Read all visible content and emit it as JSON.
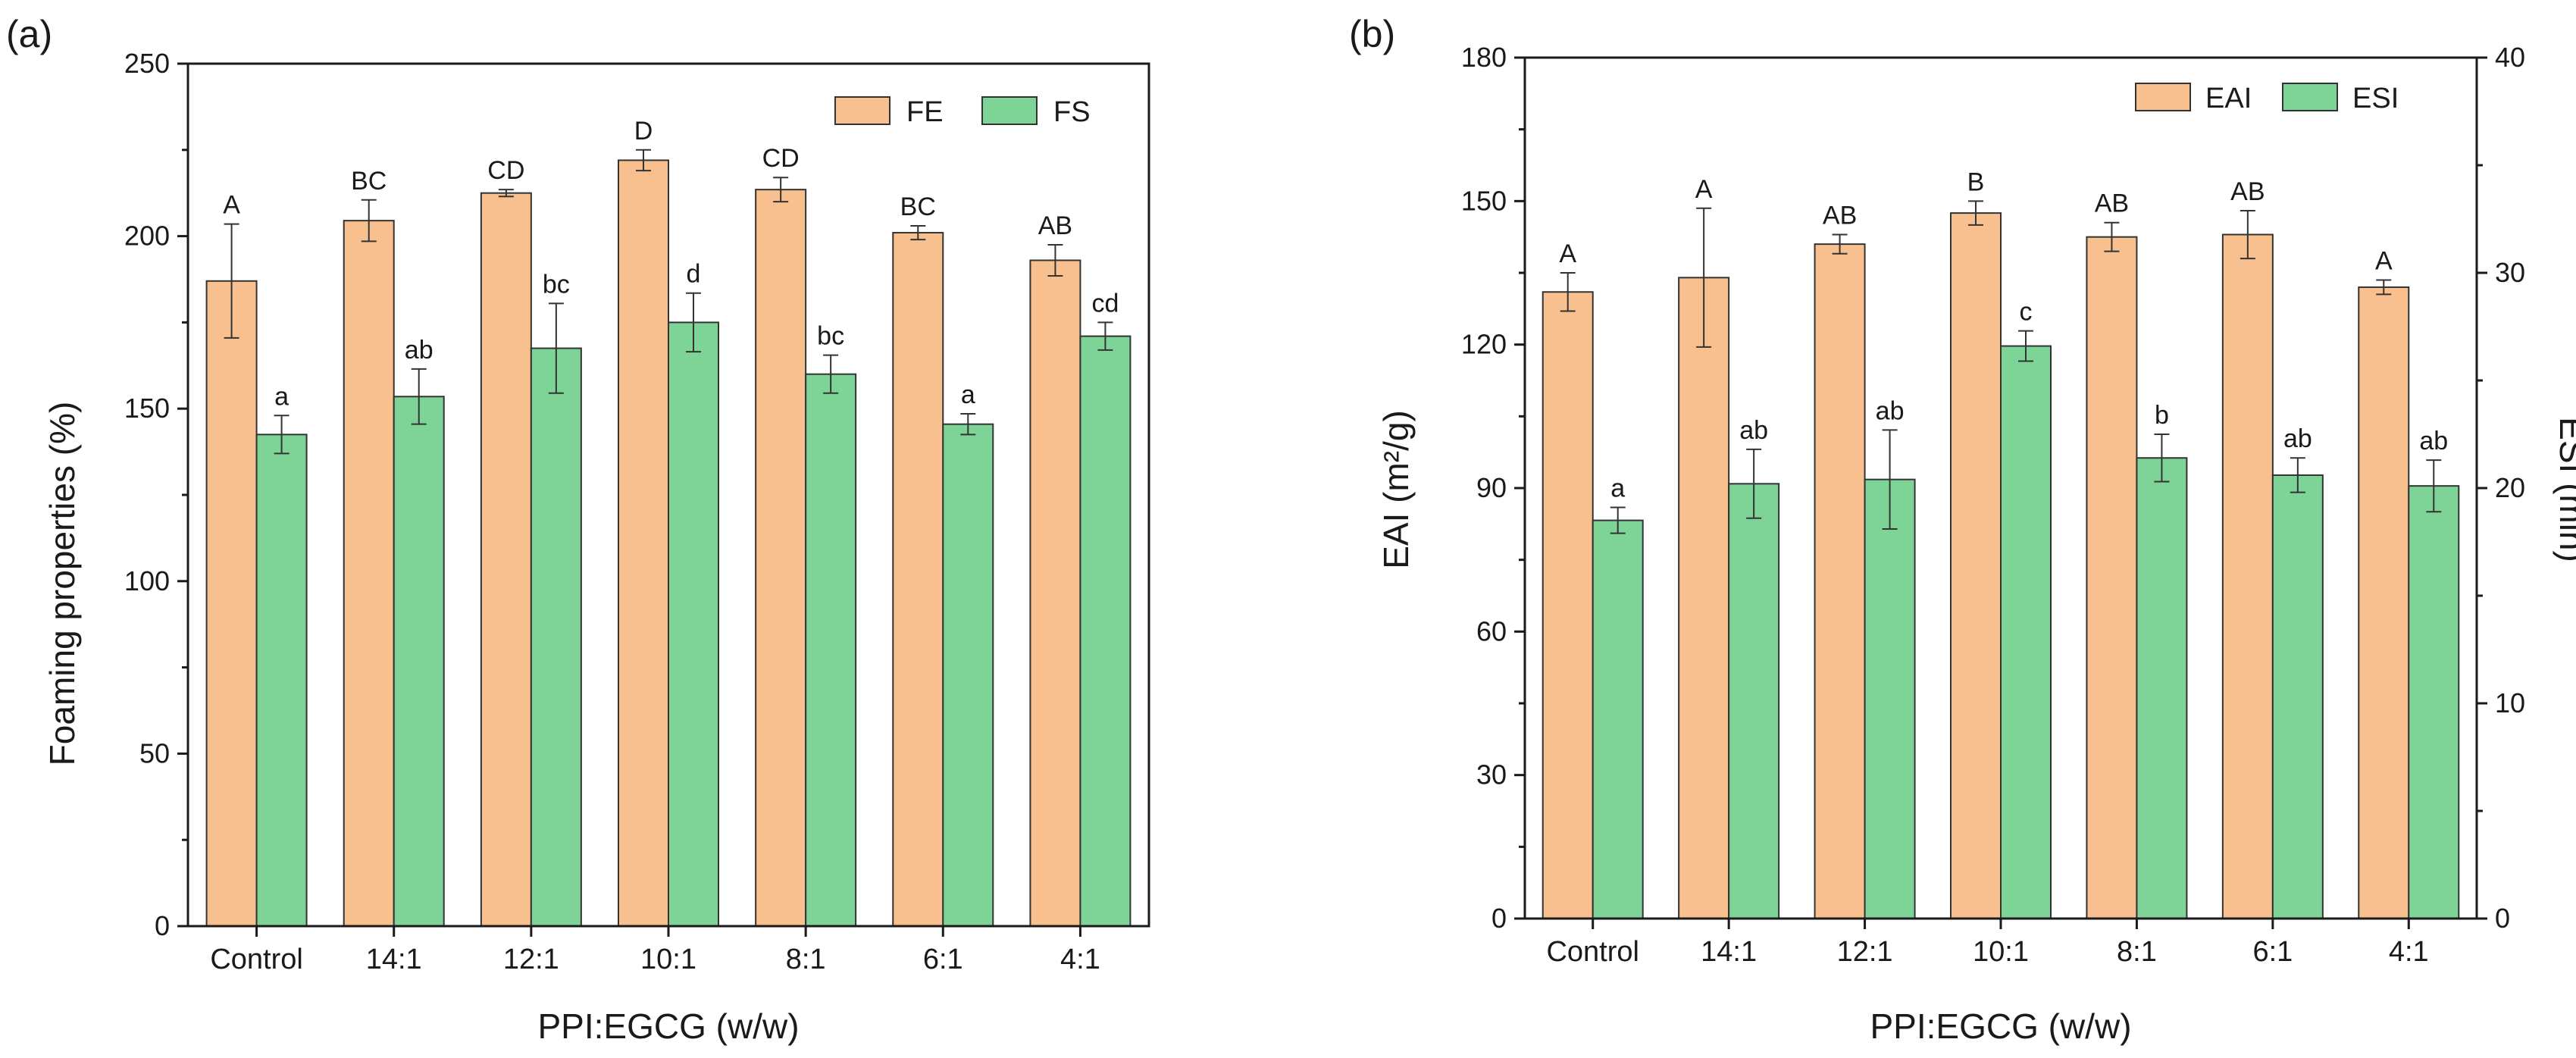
{
  "chart_data": [
    {
      "panel_label": "(a)",
      "type": "bar",
      "xlabel": "PPI:EGCG (w/w)",
      "ylabel": "Foaming properties (%)",
      "ylim": [
        0,
        250
      ],
      "yticks": [
        "0",
        "50",
        "100",
        "150",
        "200",
        "250"
      ],
      "categories": [
        "Control",
        "14:1",
        "12:1",
        "10:1",
        "8:1",
        "6:1",
        "4:1"
      ],
      "series": [
        {
          "name": "FE",
          "color": "#f8c08e",
          "values": [
            187,
            204.5,
            212.5,
            222,
            213.5,
            201,
            193
          ],
          "errors": [
            16.5,
            6,
            1,
            3,
            3.5,
            2,
            4.5
          ],
          "labels": [
            "A",
            "BC",
            "CD",
            "D",
            "CD",
            "BC",
            "AB"
          ]
        },
        {
          "name": "FS",
          "color": "#7ed497",
          "values": [
            142.5,
            153.5,
            167.5,
            175,
            160,
            145.5,
            171
          ],
          "errors": [
            5.5,
            8,
            13,
            8.5,
            5.5,
            3,
            4
          ],
          "labels": [
            "a",
            "ab",
            "bc",
            "d",
            "bc",
            "a",
            "cd"
          ]
        }
      ]
    },
    {
      "panel_label": "(b)",
      "type": "bar",
      "xlabel": "PPI:EGCG (w/w)",
      "ylabel_left": "EAI (m²/g)",
      "ylabel_right": "ESI (min)",
      "ylim_left": [
        0,
        180
      ],
      "ylim_right": [
        0,
        40
      ],
      "yticks_left": [
        "0",
        "30",
        "60",
        "90",
        "120",
        "150",
        "180"
      ],
      "yticks_right": [
        "0",
        "10",
        "20",
        "30",
        "40"
      ],
      "categories": [
        "Control",
        "14:1",
        "12:1",
        "10:1",
        "8:1",
        "6:1",
        "4:1"
      ],
      "series": [
        {
          "name": "EAI",
          "color": "#f8c08e",
          "axis": "left",
          "values": [
            131,
            134,
            141,
            147.5,
            142.5,
            143,
            132
          ],
          "errors": [
            4,
            14.5,
            2,
            2.5,
            3,
            5,
            1.5
          ],
          "labels": [
            "A",
            "A",
            "AB",
            "B",
            "AB",
            "AB",
            "A"
          ]
        },
        {
          "name": "ESI",
          "color": "#7ed497",
          "axis": "right",
          "values": [
            18.5,
            20.2,
            20.4,
            26.6,
            21.4,
            20.6,
            20.1
          ],
          "errors": [
            0.6,
            1.6,
            2.3,
            0.7,
            1.1,
            0.8,
            1.2
          ],
          "labels": [
            "a",
            "ab",
            "ab",
            "c",
            "b",
            "ab",
            "ab"
          ]
        }
      ]
    }
  ]
}
